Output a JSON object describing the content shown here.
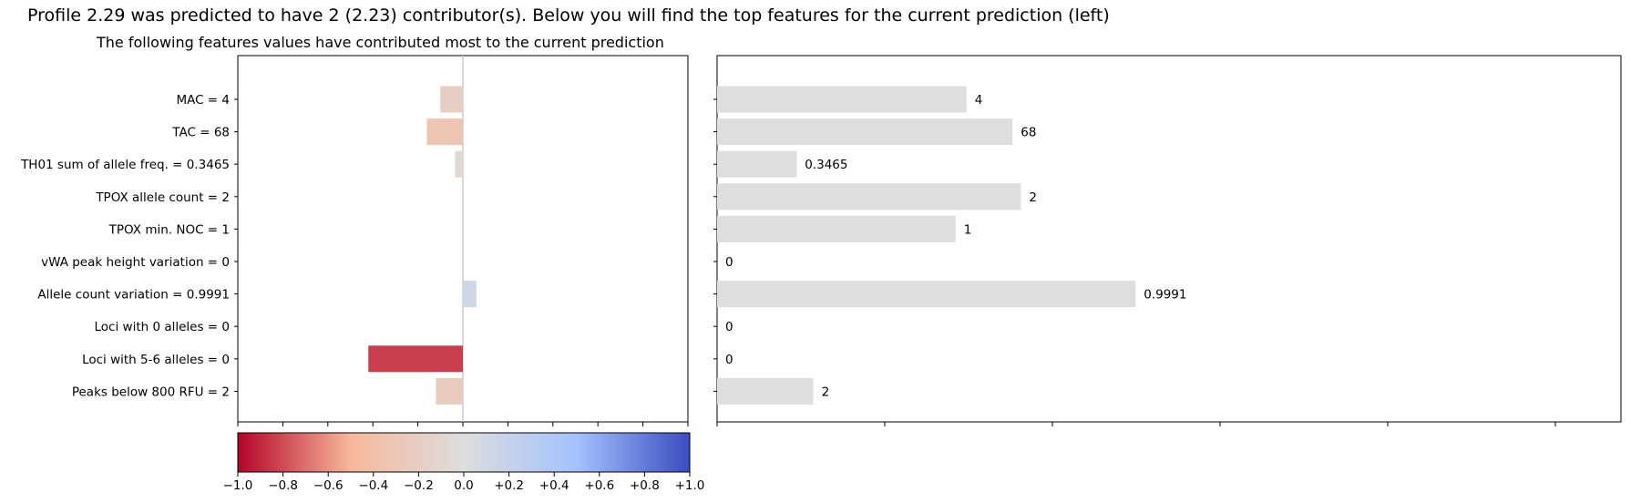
{
  "header": {
    "prediction_text": "Profile 2.29 was predicted to have 2 (2.23) contributor(s).",
    "top_features_text": "Below you will find the top features for the current prediction (left)",
    "left_panel_title": "The following features values have contributed most to the current prediction"
  },
  "chart_data": [
    {
      "type": "bar",
      "orientation": "horizontal",
      "title": "The following features values have contributed most to the current prediction",
      "categories": [
        "MAC = 4",
        "TAC = 68",
        "TH01 sum of allele freq. = 0.3465",
        "TPOX allele count = 2",
        "TPOX min. NOC = 1",
        "vWA peak height variation = 0",
        "Allele count variation = 0.9991",
        "Loci with 0 alleles = 0",
        "Loci with 5-6 alleles = 0",
        "Peaks below 800 RFU = 2"
      ],
      "values": [
        -0.1,
        -0.16,
        -0.035,
        0,
        0,
        0,
        0.06,
        0,
        -0.42,
        -0.12
      ],
      "xlim": [
        -1.0,
        1.0
      ],
      "xticks_shown": false,
      "zero_line": true,
      "colormap": "coolwarm"
    },
    {
      "type": "bar",
      "orientation": "horizontal",
      "categories": [
        "MAC = 4",
        "TAC = 68",
        "TH01 sum of allele freq. = 0.3465",
        "TPOX allele count = 2",
        "TPOX min. NOC = 1",
        "vWA peak height variation = 0",
        "Allele count variation = 0.9991",
        "Loci with 0 alleles = 0",
        "Loci with 5-6 alleles = 0",
        "Peaks below 800 RFU = 2"
      ],
      "values": [
        0.596,
        0.706,
        0.19,
        0.726,
        0.57,
        0,
        1.0,
        0,
        0,
        0.23
      ],
      "data_labels": [
        "4",
        "68",
        "0.3465",
        "2",
        "1",
        "0",
        "0.9991",
        "0",
        "0",
        "2"
      ],
      "xlim": [
        0,
        2.16
      ],
      "bar_color": "#dedede",
      "xticks_shown": false
    },
    {
      "type": "colorbar",
      "colormap": "coolwarm",
      "range": [
        -1.0,
        1.0
      ],
      "tick_labels": [
        "−1.0",
        "−0.8",
        "−0.6",
        "−0.4",
        "−0.2",
        "0.0",
        "+0.2",
        "+0.4",
        "+0.6",
        "+0.8",
        "+1.0"
      ]
    }
  ],
  "colors": {
    "zero_line": "#cccccc",
    "neutral_bar": "#dedede",
    "colormap_stops": [
      "#b40426",
      "#f7b89c",
      "#dddddd",
      "#a3c2fe",
      "#3b4cc0"
    ]
  }
}
